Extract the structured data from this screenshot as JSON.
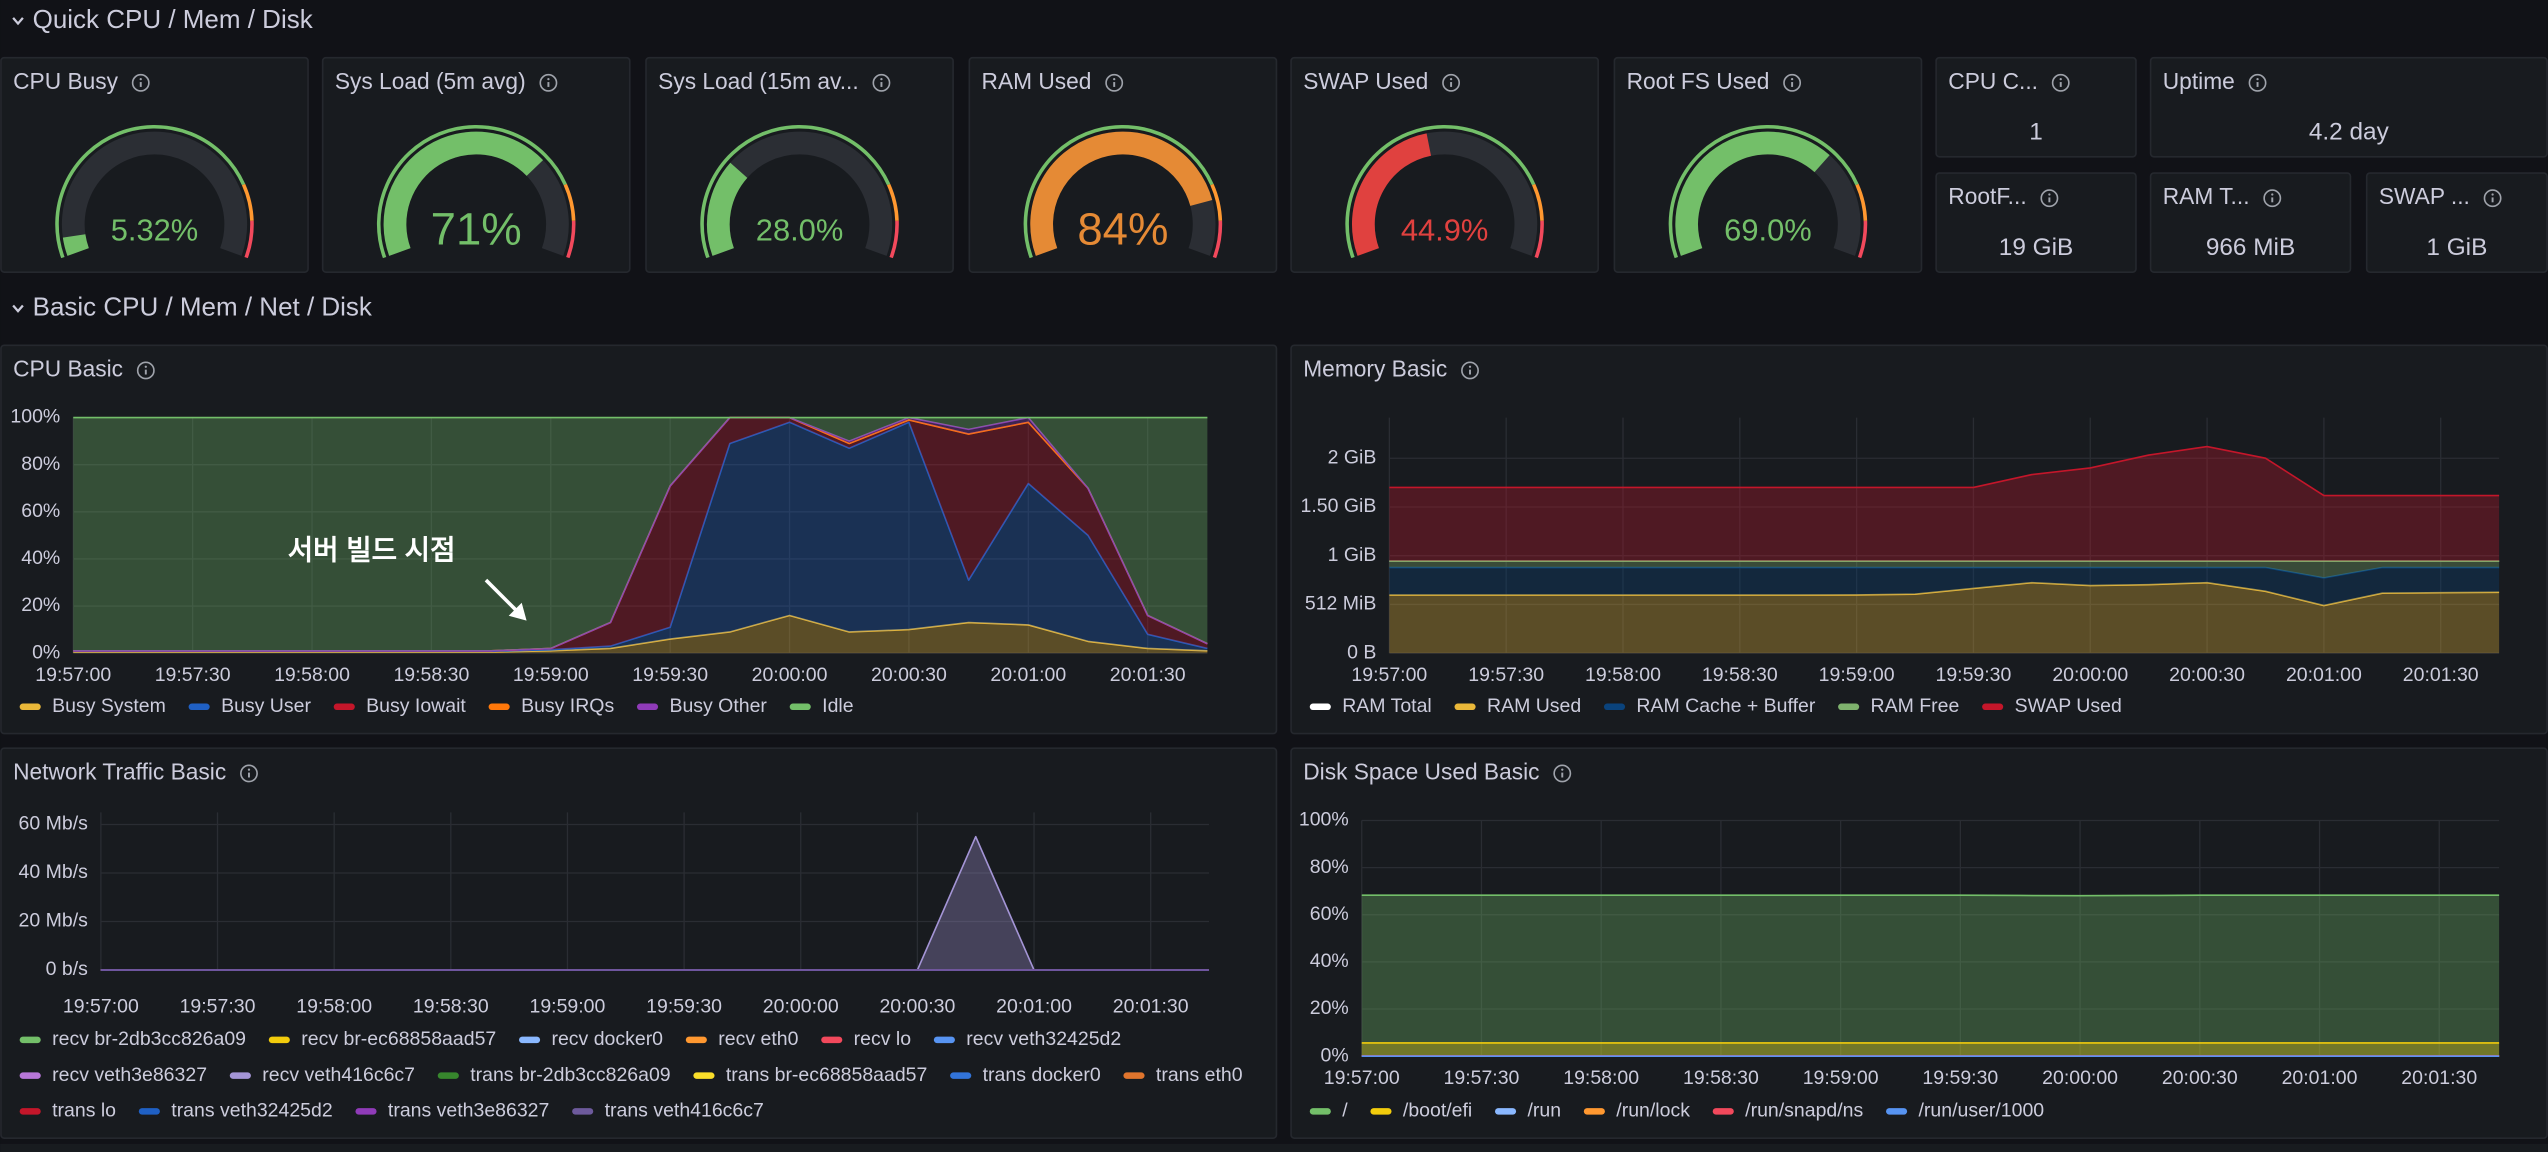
{
  "sections": [
    "Quick CPU / Mem / Disk",
    "Basic CPU / Mem / Net / Disk"
  ],
  "gauges": [
    {
      "title": "CPU Busy",
      "value": {
        "value": 5.32,
        "label": "5.32%"
      },
      "lim": [
        0,
        100
      ],
      "color": "#73bf69"
    },
    {
      "title": "Sys Load (5m avg)",
      "value": {
        "value": 71,
        "label": "71%"
      },
      "lim": [
        0,
        100
      ],
      "color": "#73bf69"
    },
    {
      "title": "Sys Load (15m av...",
      "value": {
        "value": 28,
        "label": "28.0%"
      },
      "lim": [
        0,
        100
      ],
      "color": "#73bf69"
    },
    {
      "title": "RAM Used",
      "value": {
        "value": 84,
        "label": "84%"
      },
      "lim": [
        0,
        100
      ],
      "color": "#e58a35"
    },
    {
      "title": "SWAP Used",
      "value": {
        "value": 44.9,
        "label": "44.9%"
      },
      "lim": [
        0,
        100
      ],
      "color": "#e0413f"
    },
    {
      "title": "Root FS Used",
      "value": {
        "value": 69,
        "label": "69.0%"
      },
      "lim": [
        0,
        100
      ],
      "color": "#73bf69"
    }
  ],
  "stats": [
    {
      "title": "CPU C...",
      "value": "1"
    },
    {
      "title": "Uptime",
      "value": "4.2 day"
    },
    {
      "title": "RootF...",
      "value": "19 GiB"
    },
    {
      "title": "RAM T...",
      "value": "966 MiB"
    },
    {
      "title": "SWAP ...",
      "value": "1 GiB"
    }
  ],
  "chart_data": [
    {
      "type": "line",
      "title": "CPU Basic",
      "stacked": true,
      "annotation": "서버 빌드 시점",
      "x": [
        "19:57:00",
        null,
        "19:57:30",
        null,
        "19:58:00",
        null,
        "19:58:30",
        null,
        "19:59:00",
        null,
        "19:59:30",
        null,
        "20:00:00",
        null,
        "20:00:30",
        null,
        "20:01:00",
        null,
        "20:01:30",
        null
      ],
      "ylim": [
        0,
        100
      ],
      "yticks": [
        {
          "value": 0,
          "label": "0%"
        },
        {
          "value": 20,
          "label": "20%"
        },
        {
          "value": 40,
          "label": "40%"
        },
        {
          "value": 60,
          "label": "60%"
        },
        {
          "value": 80,
          "label": "80%"
        },
        {
          "value": 100,
          "label": "100%"
        }
      ],
      "series": [
        {
          "name": "Busy System",
          "color": "#eab839",
          "values": [
            0.5,
            0.5,
            0.5,
            0.5,
            0.5,
            0.5,
            0.5,
            0.5,
            1,
            2,
            6,
            9,
            16,
            9,
            10,
            13,
            12,
            5,
            2,
            1
          ]
        },
        {
          "name": "Busy User",
          "color": "#1f60c4",
          "values": [
            0.3,
            0.3,
            0.3,
            0.3,
            0.3,
            0.3,
            0.3,
            0.3,
            0.5,
            1,
            5,
            80,
            82,
            78,
            88,
            18,
            60,
            45,
            6,
            1
          ]
        },
        {
          "name": "Busy Iowait",
          "color": "#c4162a",
          "values": [
            0.2,
            0.2,
            0.2,
            0.2,
            0.2,
            0.2,
            0.2,
            0.2,
            0.5,
            10,
            60,
            11,
            2,
            2,
            1,
            62,
            26,
            20,
            8,
            2
          ]
        },
        {
          "name": "Busy IRQs",
          "color": "#ff780a",
          "values": [
            0,
            0,
            0,
            0,
            0,
            0,
            0,
            0,
            0,
            0,
            0,
            0,
            0,
            0,
            0,
            0,
            0,
            0,
            0,
            0
          ]
        },
        {
          "name": "Busy Other",
          "color": "#8f3bb8",
          "values": [
            0,
            0,
            0,
            0,
            0,
            0,
            0,
            0,
            0,
            0,
            0,
            0,
            0,
            1,
            1,
            2,
            2,
            0,
            0,
            0
          ]
        },
        {
          "name": "Idle",
          "color": "#73bf69",
          "values": [
            99,
            99,
            99,
            99,
            99,
            99,
            99,
            99,
            98,
            87,
            29,
            0,
            0,
            10,
            0,
            5,
            0,
            30,
            84,
            96
          ]
        }
      ]
    },
    {
      "type": "line",
      "title": "Memory Basic",
      "stacked": true,
      "x": [
        "19:57:00",
        null,
        "19:57:30",
        null,
        "19:58:00",
        null,
        "19:58:30",
        null,
        "19:59:00",
        null,
        "19:59:30",
        null,
        "20:00:00",
        null,
        "20:00:30",
        null,
        "20:01:00",
        null,
        "20:01:30",
        null
      ],
      "ylim": [
        0,
        2475
      ],
      "yticks": [
        {
          "value": 0,
          "label": "0 B"
        },
        {
          "value": 512,
          "label": "512 MiB"
        },
        {
          "value": 1024,
          "label": "1 GiB"
        },
        {
          "value": 1536,
          "label": "1.50 GiB"
        },
        {
          "value": 2048,
          "label": "2 GiB"
        }
      ],
      "series": [
        {
          "name": "RAM Total",
          "color": "#ffffff",
          "stack": false,
          "fill": false,
          "values": [
            966,
            966,
            966,
            966,
            966,
            966,
            966,
            966,
            966,
            966,
            966,
            966,
            966,
            966,
            966,
            966,
            966,
            966,
            966,
            966
          ]
        },
        {
          "name": "RAM Used",
          "color": "#eab839",
          "values": [
            610,
            610,
            610,
            610,
            610,
            610,
            610,
            610,
            612,
            620,
            680,
            740,
            710,
            720,
            740,
            650,
            500,
            630,
            635,
            640
          ]
        },
        {
          "name": "RAM Cache + Buffer",
          "color": "#0a437c",
          "values": [
            290,
            290,
            290,
            290,
            290,
            290,
            290,
            290,
            288,
            280,
            220,
            160,
            190,
            180,
            160,
            250,
            290,
            270,
            265,
            260
          ]
        },
        {
          "name": "RAM Free",
          "color": "#7eb26d",
          "values": [
            66,
            66,
            66,
            66,
            66,
            66,
            66,
            66,
            66,
            66,
            66,
            66,
            66,
            66,
            66,
            66,
            176,
            66,
            66,
            66
          ]
        },
        {
          "name": "SWAP Used",
          "color": "#c4162a",
          "values": [
            775,
            775,
            775,
            775,
            775,
            775,
            775,
            775,
            775,
            775,
            775,
            910,
            980,
            1115,
            1205,
            1082,
            690,
            690,
            690,
            690
          ]
        }
      ]
    },
    {
      "type": "line",
      "title": "Network Traffic Basic",
      "stacked": false,
      "x": [
        "19:57:00",
        null,
        "19:57:30",
        null,
        "19:58:00",
        null,
        "19:58:30",
        null,
        "19:59:00",
        null,
        "19:59:30",
        null,
        "20:00:00",
        null,
        "20:00:30",
        null,
        "20:01:00",
        null,
        "20:01:30",
        null
      ],
      "ylim": [
        0,
        65
      ],
      "yticks": [
        {
          "value": 0,
          "label": "0 b/s"
        },
        {
          "value": 20,
          "label": "20 Mb/s"
        },
        {
          "value": 40,
          "label": "40 Mb/s"
        },
        {
          "value": 60,
          "label": "60 Mb/s"
        }
      ],
      "series": [
        {
          "name": "recv br-2db3cc826a09",
          "color": "#73bf69",
          "values": [
            0,
            0,
            0,
            0,
            0,
            0,
            0,
            0,
            0,
            0,
            0,
            0,
            0,
            0,
            0,
            0,
            0,
            0,
            0,
            0
          ]
        },
        {
          "name": "recv br-ec68858aad57",
          "color": "#f2cc0c",
          "values": [
            0,
            0,
            0,
            0,
            0,
            0,
            0,
            0,
            0,
            0,
            0,
            0,
            0,
            0,
            0,
            0,
            0,
            0,
            0,
            0
          ]
        },
        {
          "name": "recv docker0",
          "color": "#8ab8ff",
          "values": [
            0,
            0,
            0,
            0,
            0,
            0,
            0,
            0,
            0,
            0,
            0,
            0,
            0,
            0,
            0,
            0,
            0,
            0,
            0,
            0
          ]
        },
        {
          "name": "recv eth0",
          "color": "#ff9830",
          "values": [
            0,
            0,
            0,
            0,
            0,
            0,
            0,
            0,
            0,
            0,
            0,
            0,
            0,
            0,
            0,
            0,
            0,
            0,
            0,
            0
          ]
        },
        {
          "name": "recv lo",
          "color": "#f2495c",
          "values": [
            0,
            0,
            0,
            0,
            0,
            0,
            0,
            0,
            0,
            0,
            0,
            0,
            0,
            0,
            0,
            0,
            0,
            0,
            0,
            0
          ]
        },
        {
          "name": "recv veth32425d2",
          "color": "#5794f2",
          "values": [
            0,
            0,
            0,
            0,
            0,
            0,
            0,
            0,
            0,
            0,
            0,
            0,
            0,
            0,
            0,
            0,
            0,
            0,
            0,
            0
          ]
        },
        {
          "name": "recv veth3e86327",
          "color": "#b877d9",
          "values": [
            0,
            0,
            0,
            0,
            0,
            0,
            0,
            0,
            0,
            0,
            0,
            0,
            0,
            0,
            0,
            0,
            0,
            0,
            0,
            0
          ]
        },
        {
          "name": "recv veth416c6c7",
          "color": "#a495d6",
          "values": [
            0,
            0,
            0,
            0,
            0,
            0,
            0,
            0,
            0,
            0,
            0,
            0,
            0,
            0,
            0,
            55,
            0,
            0,
            0,
            0
          ]
        },
        {
          "name": "trans br-2db3cc826a09",
          "color": "#37872d",
          "values": [
            0,
            0,
            0,
            0,
            0,
            0,
            0,
            0,
            0,
            0,
            0,
            0,
            0,
            0,
            0,
            0,
            0,
            0,
            0,
            0
          ]
        },
        {
          "name": "trans br-ec68858aad57",
          "color": "#fade2a",
          "values": [
            0,
            0,
            0,
            0,
            0,
            0,
            0,
            0,
            0,
            0,
            0,
            0,
            0,
            0,
            0,
            0,
            0,
            0,
            0,
            0
          ]
        },
        {
          "name": "trans docker0",
          "color": "#3274d9",
          "values": [
            0,
            0,
            0,
            0,
            0,
            0,
            0,
            0,
            0,
            0,
            0,
            0,
            0,
            0,
            0,
            0,
            0,
            0,
            0,
            0
          ]
        },
        {
          "name": "trans eth0",
          "color": "#e0752d",
          "values": [
            0,
            0,
            0,
            0,
            0,
            0,
            0,
            0,
            0,
            0,
            0,
            0,
            0,
            0,
            0,
            0,
            0,
            0,
            0,
            0
          ]
        },
        {
          "name": "trans lo",
          "color": "#c4162a",
          "values": [
            0,
            0,
            0,
            0,
            0,
            0,
            0,
            0,
            0,
            0,
            0,
            0,
            0,
            0,
            0,
            0,
            0,
            0,
            0,
            0
          ]
        },
        {
          "name": "trans veth32425d2",
          "color": "#1f60c4",
          "values": [
            0,
            0,
            0,
            0,
            0,
            0,
            0,
            0,
            0,
            0,
            0,
            0,
            0,
            0,
            0,
            0,
            0,
            0,
            0,
            0
          ]
        },
        {
          "name": "trans veth3e86327",
          "color": "#8f3bb8",
          "values": [
            0,
            0,
            0,
            0,
            0,
            0,
            0,
            0,
            0,
            0,
            0,
            0,
            0,
            0,
            0,
            0,
            0,
            0,
            0,
            0
          ]
        },
        {
          "name": "trans veth416c6c7",
          "color": "#6d5a9c",
          "values": [
            0,
            0,
            0,
            0,
            0,
            0,
            0,
            0,
            0,
            0,
            0,
            0,
            0,
            0,
            0,
            0,
            0,
            0,
            0,
            0
          ]
        }
      ]
    },
    {
      "type": "line",
      "title": "Disk Space Used Basic",
      "stacked": false,
      "x": [
        "19:57:00",
        null,
        "19:57:30",
        null,
        "19:58:00",
        null,
        "19:58:30",
        null,
        "19:59:00",
        null,
        "19:59:30",
        null,
        "20:00:00",
        null,
        "20:00:30",
        null,
        "20:01:00",
        null,
        "20:01:30",
        null
      ],
      "ylim": [
        0,
        100
      ],
      "yticks": [
        {
          "value": 0,
          "label": "0%"
        },
        {
          "value": 20,
          "label": "20%"
        },
        {
          "value": 40,
          "label": "40%"
        },
        {
          "value": 60,
          "label": "60%"
        },
        {
          "value": 80,
          "label": "80%"
        },
        {
          "value": 100,
          "label": "100%"
        }
      ],
      "series": [
        {
          "name": "/",
          "color": "#73bf69",
          "values": [
            68.3,
            68.3,
            68.3,
            68.3,
            68.3,
            68.3,
            68.3,
            68.3,
            68.3,
            68.3,
            68.3,
            68.2,
            68.1,
            68.2,
            68.3,
            68.3,
            68.3,
            68.3,
            68.3,
            68.3
          ]
        },
        {
          "name": "/boot/efi",
          "color": "#f2cc0c",
          "values": [
            5.6,
            5.6,
            5.6,
            5.6,
            5.6,
            5.6,
            5.6,
            5.6,
            5.6,
            5.6,
            5.6,
            5.6,
            5.6,
            5.6,
            5.6,
            5.6,
            5.6,
            5.6,
            5.6,
            5.6
          ]
        },
        {
          "name": "/run",
          "color": "#8ab8ff",
          "values": [
            0.1,
            0.1,
            0.1,
            0.1,
            0.1,
            0.1,
            0.1,
            0.1,
            0.1,
            0.1,
            0.1,
            0.1,
            0.1,
            0.1,
            0.1,
            0.1,
            0.1,
            0.1,
            0.1,
            0.1
          ]
        },
        {
          "name": "/run/lock",
          "color": "#ff9830",
          "values": [
            0,
            0,
            0,
            0,
            0,
            0,
            0,
            0,
            0,
            0,
            0,
            0,
            0,
            0,
            0,
            0,
            0,
            0,
            0,
            0
          ]
        },
        {
          "name": "/run/snapd/ns",
          "color": "#f2495c",
          "values": [
            0.1,
            0.1,
            0.1,
            0.1,
            0.1,
            0.1,
            0.1,
            0.1,
            0.1,
            0.1,
            0.1,
            0.1,
            0.1,
            0.1,
            0.1,
            0.1,
            0.1,
            0.1,
            0.1,
            0.1
          ]
        },
        {
          "name": "/run/user/1000",
          "color": "#5794f2",
          "values": [
            0,
            0,
            0,
            0,
            0,
            0,
            0,
            0,
            0,
            0,
            0,
            0,
            0,
            0,
            0,
            0,
            0,
            0,
            0,
            0
          ]
        }
      ]
    }
  ]
}
